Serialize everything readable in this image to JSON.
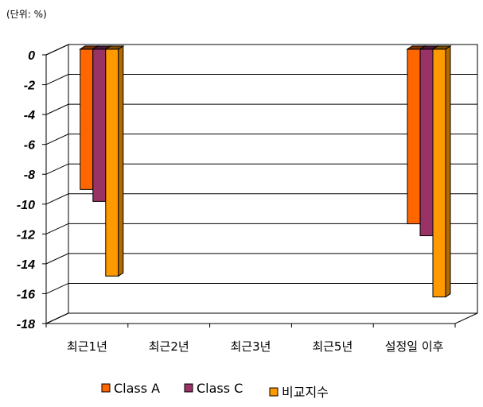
{
  "unit_label": "(단위: %)",
  "chart_data": {
    "type": "bar",
    "categories": [
      "최근1년",
      "최근2년",
      "최근3년",
      "최근5년",
      "설정일 이후"
    ],
    "series": [
      {
        "name": "Class A",
        "color": "#ff6600",
        "values": [
          -9.4,
          null,
          null,
          null,
          -11.7
        ]
      },
      {
        "name": "Class C",
        "color": "#993366",
        "values": [
          -10.2,
          null,
          null,
          null,
          -12.5
        ]
      },
      {
        "name": "비교지수",
        "color": "#ff9900",
        "values": [
          -15.2,
          null,
          null,
          null,
          -16.6
        ]
      }
    ],
    "ylim": [
      -18,
      0
    ],
    "yticks": [
      "0",
      "-2",
      "-4",
      "-6",
      "-8",
      "-10",
      "-12",
      "-14",
      "-16",
      "-18"
    ],
    "grid": true,
    "legend": "bottom",
    "style": "3d"
  }
}
